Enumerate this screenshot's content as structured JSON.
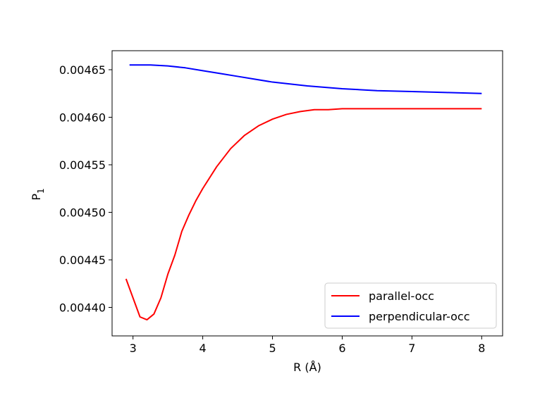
{
  "chart_data": {
    "type": "line",
    "title": "",
    "xlabel": "R (Å)",
    "ylabel_main": "P",
    "ylabel_sub": "1",
    "xlim": [
      2.7,
      8.3
    ],
    "ylim": [
      0.00437,
      0.00467
    ],
    "xticks": [
      3,
      4,
      5,
      6,
      7,
      8
    ],
    "xtick_labels": [
      "3",
      "4",
      "5",
      "6",
      "7",
      "8"
    ],
    "yticks": [
      0.0044,
      0.00445,
      0.0045,
      0.00455,
      0.0046,
      0.00465
    ],
    "ytick_labels": [
      "0.00440",
      "0.00445",
      "0.00450",
      "0.00455",
      "0.00460",
      "0.00465"
    ],
    "grid": false,
    "legend_position": "lower-right",
    "series": [
      {
        "name": "parallel-occ",
        "color": "#ff0000",
        "x": [
          2.9,
          3.0,
          3.1,
          3.2,
          3.3,
          3.4,
          3.5,
          3.6,
          3.7,
          3.8,
          3.9,
          4.0,
          4.2,
          4.4,
          4.6,
          4.8,
          5.0,
          5.2,
          5.4,
          5.6,
          5.8,
          6.0,
          6.2,
          6.5,
          7.0,
          7.5,
          8.0
        ],
        "y": [
          0.00443,
          0.00441,
          0.00439,
          0.004387,
          0.004393,
          0.00441,
          0.004435,
          0.004455,
          0.00448,
          0.004497,
          0.004512,
          0.004525,
          0.004548,
          0.004567,
          0.004581,
          0.004591,
          0.004598,
          0.004603,
          0.004606,
          0.004608,
          0.004608,
          0.004609,
          0.004609,
          0.004609,
          0.004609,
          0.004609,
          0.004609
        ]
      },
      {
        "name": "perpendicular-occ",
        "color": "#0000ff",
        "x": [
          2.95,
          3.0,
          3.25,
          3.5,
          3.75,
          4.0,
          4.25,
          4.5,
          4.75,
          5.0,
          5.5,
          6.0,
          6.5,
          7.0,
          7.5,
          8.0
        ],
        "y": [
          0.004655,
          0.004655,
          0.004655,
          0.004654,
          0.004652,
          0.004649,
          0.004646,
          0.004643,
          0.00464,
          0.004637,
          0.004633,
          0.00463,
          0.004628,
          0.004627,
          0.004626,
          0.004625
        ]
      }
    ]
  }
}
